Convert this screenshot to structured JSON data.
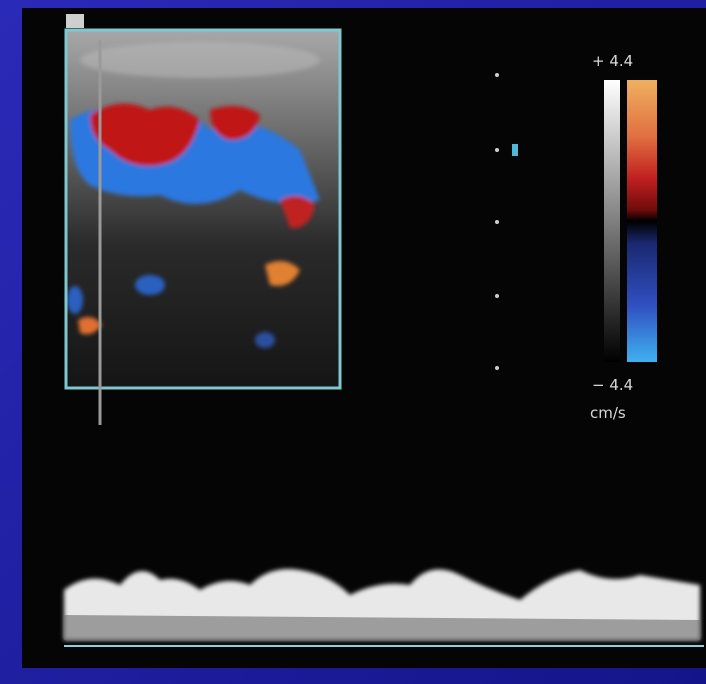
{
  "scale": {
    "max_label": "+ 4.4",
    "min_label": "− 4.4",
    "unit": "cm/s"
  }
}
